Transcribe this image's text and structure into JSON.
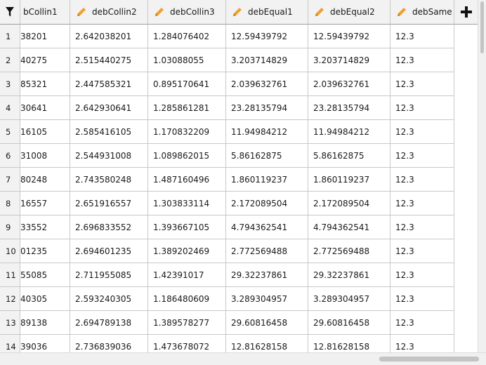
{
  "columns": [
    {
      "label": "bCollin1",
      "icon": "none"
    },
    {
      "label": "debCollin2",
      "icon": "pencil-icon"
    },
    {
      "label": "debCollin3",
      "icon": "pencil-icon"
    },
    {
      "label": "debEqual1",
      "icon": "pencil-icon"
    },
    {
      "label": "debEqual2",
      "icon": "pencil-icon"
    },
    {
      "label": "debSame",
      "icon": "pencil-icon"
    }
  ],
  "accent_color": "#f0a030",
  "rows": [
    {
      "n": "1",
      "c1": "38201",
      "c2": "2.642038201",
      "c3": "1.284076402",
      "c4": "12.59439792",
      "c5": "12.59439792",
      "c6": "12.3"
    },
    {
      "n": "2",
      "c1": "40275",
      "c2": "2.515440275",
      "c3": "1.03088055",
      "c4": "3.203714829",
      "c5": "3.203714829",
      "c6": "12.3"
    },
    {
      "n": "3",
      "c1": "85321",
      "c2": "2.447585321",
      "c3": "0.895170641",
      "c4": "2.039632761",
      "c5": "2.039632761",
      "c6": "12.3"
    },
    {
      "n": "4",
      "c1": "30641",
      "c2": "2.642930641",
      "c3": "1.285861281",
      "c4": "23.28135794",
      "c5": "23.28135794",
      "c6": "12.3"
    },
    {
      "n": "5",
      "c1": "16105",
      "c2": "2.585416105",
      "c3": "1.170832209",
      "c4": "11.94984212",
      "c5": "11.94984212",
      "c6": "12.3"
    },
    {
      "n": "6",
      "c1": "31008",
      "c2": "2.544931008",
      "c3": "1.089862015",
      "c4": "5.86162875",
      "c5": "5.86162875",
      "c6": "12.3"
    },
    {
      "n": "7",
      "c1": "80248",
      "c2": "2.743580248",
      "c3": "1.487160496",
      "c4": "1.860119237",
      "c5": "1.860119237",
      "c6": "12.3"
    },
    {
      "n": "8",
      "c1": "16557",
      "c2": "2.651916557",
      "c3": "1.303833114",
      "c4": "2.172089504",
      "c5": "2.172089504",
      "c6": "12.3"
    },
    {
      "n": "9",
      "c1": "33552",
      "c2": "2.696833552",
      "c3": "1.393667105",
      "c4": "4.794362541",
      "c5": "4.794362541",
      "c6": "12.3"
    },
    {
      "n": "10",
      "c1": "01235",
      "c2": "2.694601235",
      "c3": "1.389202469",
      "c4": "2.772569488",
      "c5": "2.772569488",
      "c6": "12.3"
    },
    {
      "n": "11",
      "c1": "55085",
      "c2": "2.711955085",
      "c3": "1.42391017",
      "c4": "29.32237861",
      "c5": "29.32237861",
      "c6": "12.3"
    },
    {
      "n": "12",
      "c1": "40305",
      "c2": "2.593240305",
      "c3": "1.186480609",
      "c4": "3.289304957",
      "c5": "3.289304957",
      "c6": "12.3"
    },
    {
      "n": "13",
      "c1": "89138",
      "c2": "2.694789138",
      "c3": "1.389578277",
      "c4": "29.60816458",
      "c5": "29.60816458",
      "c6": "12.3"
    },
    {
      "n": "14",
      "c1": "39036",
      "c2": "2.736839036",
      "c3": "1.473678072",
      "c4": "12.81628158",
      "c5": "12.81628158",
      "c6": "12.3"
    }
  ]
}
